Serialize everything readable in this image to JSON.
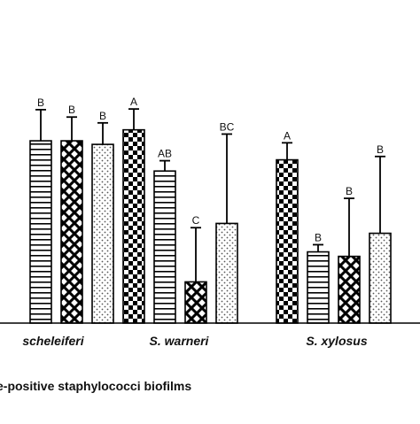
{
  "chart_data": {
    "type": "bar",
    "xlabel": "e-positive staphylococci biofilms",
    "ylabel": "",
    "ylim": [
      0,
      100
    ],
    "groups": [
      "scheleiferi",
      "S. warneri",
      "S. xylosus"
    ],
    "patterns": {
      "checker": "checker-pattern",
      "stripes": "horizontal-stripes-pattern",
      "crosshatch": "crosshatch-pattern",
      "dots": "dotted-pattern"
    },
    "bars": [
      {
        "group": 0,
        "pattern": "stripes",
        "value": 81.4,
        "err": 13.9,
        "letter": "B"
      },
      {
        "group": 0,
        "pattern": "crosshatch",
        "value": 81.4,
        "err": 10.6,
        "letter": "B"
      },
      {
        "group": 0,
        "pattern": "dots",
        "value": 79.8,
        "err": 9.6,
        "letter": "B"
      },
      {
        "group": 1,
        "pattern": "checker",
        "value": 86.3,
        "err": 9.3,
        "letter": "A"
      },
      {
        "group": 1,
        "pattern": "stripes",
        "value": 67.9,
        "err": 4.6,
        "letter": "AB"
      },
      {
        "group": 1,
        "pattern": "crosshatch",
        "value": 18.4,
        "err": 24.2,
        "letter": "C"
      },
      {
        "group": 1,
        "pattern": "dots",
        "value": 44.5,
        "err": 39.9,
        "letter": "BC"
      },
      {
        "group": 2,
        "pattern": "checker",
        "value": 72.9,
        "err": 7.6,
        "letter": "A"
      },
      {
        "group": 2,
        "pattern": "stripes",
        "value": 31.8,
        "err": 3.2,
        "letter": "B"
      },
      {
        "group": 2,
        "pattern": "crosshatch",
        "value": 29.8,
        "err": 25.9,
        "letter": "B"
      },
      {
        "group": 2,
        "pattern": "dots",
        "value": 40.1,
        "err": 34.3,
        "letter": "B"
      }
    ],
    "grid": false,
    "colors": {
      "fill": "#ffffff",
      "ink": "#000000",
      "dot": "#555555"
    }
  }
}
